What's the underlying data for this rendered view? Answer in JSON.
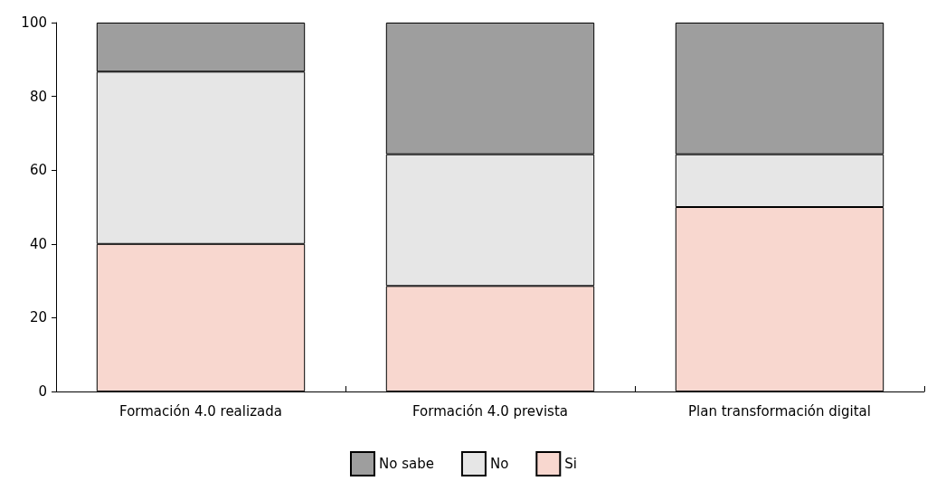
{
  "chart_data": {
    "type": "bar",
    "stacked": true,
    "categories": [
      "Formación 4.0 realizada",
      "Formación 4.0 prevista",
      "Plan transformación digital"
    ],
    "series": [
      {
        "name": "Si",
        "color": "#f8d7cf",
        "values": [
          40,
          28.6,
          50
        ]
      },
      {
        "name": "No",
        "color": "#e6e6e6",
        "values": [
          46.7,
          35.7,
          14.3
        ]
      },
      {
        "name": "No sabe",
        "color": "#9e9e9e",
        "values": [
          13.3,
          35.7,
          35.7
        ]
      }
    ],
    "ylim": [
      0,
      100
    ],
    "yticks": [
      0,
      20,
      40,
      60,
      80,
      100
    ],
    "grid": false,
    "legend": "bottom"
  }
}
